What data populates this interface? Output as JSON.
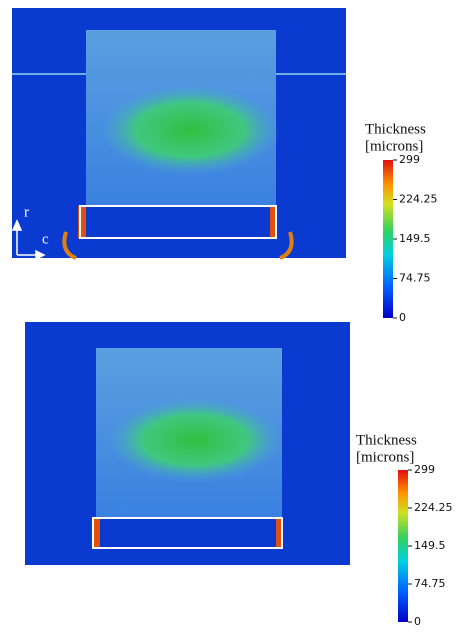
{
  "panels": [
    {
      "axis_labels": {
        "row": "r",
        "col": "c"
      },
      "colorbar": {
        "title": [
          "Thickness",
          "[microns]"
        ],
        "range": [
          0,
          299
        ],
        "ticks": [
          299,
          224.25,
          149.5,
          74.75,
          0
        ]
      }
    },
    {
      "colorbar": {
        "title": [
          "Thickness",
          "[microns]"
        ],
        "range": [
          0,
          299
        ],
        "ticks": [
          299,
          224.25,
          149.5,
          74.75,
          0
        ]
      }
    }
  ]
}
